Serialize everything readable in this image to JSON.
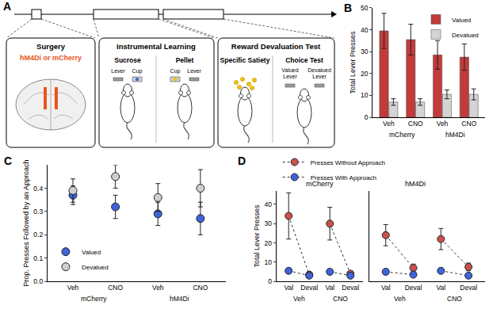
{
  "diagram": {
    "panel": "A",
    "surgery": {
      "title": "Surgery",
      "virus": "hM4Di or mCherry"
    },
    "learning": {
      "title": "Instrumental Learning",
      "phases": [
        {
          "label": "Sucrose",
          "items": [
            "Lever",
            "Cup"
          ]
        },
        {
          "label": "Pellet",
          "items": [
            "Cup",
            "Lever"
          ]
        }
      ]
    },
    "test": {
      "title": "Reward Devaluation Test",
      "satiety": "Specific Satiety",
      "choice": "Choice Test",
      "levers": [
        "Valued Lever",
        "Devalued Lever"
      ]
    }
  },
  "chart_data": [
    {
      "panel": "B",
      "type": "bar",
      "y_label": "Total Lever Presses",
      "categories": [
        "Veh",
        "CNO",
        "Veh",
        "CNO"
      ],
      "groups": [
        "mCherry",
        "mCherry",
        "hM4Di",
        "hM4Di"
      ],
      "series": [
        {
          "name": "Valued",
          "color": "#c23b3b",
          "values": [
            39.5,
            35.5,
            28.5,
            27.5
          ],
          "errors": [
            8,
            7,
            6.5,
            6
          ]
        },
        {
          "name": "Devalued",
          "color": "#d4d4d4",
          "values": [
            7,
            7,
            10.5,
            10.5
          ],
          "errors": [
            1.5,
            1.5,
            2,
            2.5
          ]
        }
      ],
      "ylim": [
        0,
        50
      ],
      "yticks": [
        0,
        10,
        20,
        30,
        40,
        50
      ],
      "grid": false,
      "legend": "top right"
    },
    {
      "panel": "C",
      "type": "scatter",
      "marker": "circle",
      "y_label": "Prop. Presses Followed by an Approach",
      "categories": [
        "Veh",
        "CNO",
        "Veh",
        "CNO"
      ],
      "groups": [
        "mCherry",
        "mCherry",
        "hM4Di",
        "hM4Di"
      ],
      "series": [
        {
          "name": "Valued",
          "color": "#3f63d9",
          "values": [
            0.37,
            0.32,
            0.29,
            0.27
          ],
          "errors": [
            0.04,
            0.05,
            0.05,
            0.07
          ]
        },
        {
          "name": "Devalued",
          "color": "#cfcfcf",
          "values": [
            0.39,
            0.45,
            0.36,
            0.4
          ],
          "errors": [
            0.05,
            0.05,
            0.06,
            0.08
          ]
        }
      ],
      "ylim": [
        0,
        0.5
      ],
      "yticks": [
        {
          "value": 0,
          "label": "0.0"
        },
        0.1,
        0.2,
        0.3,
        0.4
      ],
      "grid": false,
      "legend": "bottom left"
    },
    {
      "panel": "D",
      "type": "line",
      "marker": "circle",
      "line_style": "dot",
      "y_label": "Total Lever Presses",
      "ylim": [
        0,
        47
      ],
      "yticks": [
        0,
        10,
        20,
        30,
        40
      ],
      "grid": false,
      "legend": "top left",
      "subplots": [
        {
          "title": "mCherry",
          "categories": [
            "Val",
            "Deval",
            "Val",
            "Deval"
          ],
          "groups": [
            "Veh",
            "Veh",
            "CNO",
            "CNO"
          ],
          "series": [
            {
              "name": "Presses Without Approach",
              "color": "#c9514e",
              "values": [
                34,
                3.5,
                30,
                4
              ],
              "errors": [
                12,
                1,
                8.5,
                1
              ]
            },
            {
              "name": "Presses With Approach",
              "color": "#3f63d9",
              "values": [
                5.5,
                3,
                5,
                3
              ],
              "errors": [
                1,
                0.7,
                1,
                0.7
              ]
            }
          ]
        },
        {
          "title": "hM4Di",
          "categories": [
            "Val",
            "Deval",
            "Val",
            "Deval"
          ],
          "groups": [
            "Veh",
            "Veh",
            "CNO",
            "CNO"
          ],
          "series": [
            {
              "name": "Presses Without Approach",
              "color": "#c9514e",
              "values": [
                24,
                7,
                22,
                7.5
              ],
              "errors": [
                5.5,
                2,
                5.5,
                2
              ]
            },
            {
              "name": "Presses With Approach",
              "color": "#3f63d9",
              "values": [
                5,
                3.5,
                5.5,
                3
              ],
              "errors": [
                1,
                1,
                1,
                1
              ]
            }
          ]
        }
      ]
    }
  ]
}
